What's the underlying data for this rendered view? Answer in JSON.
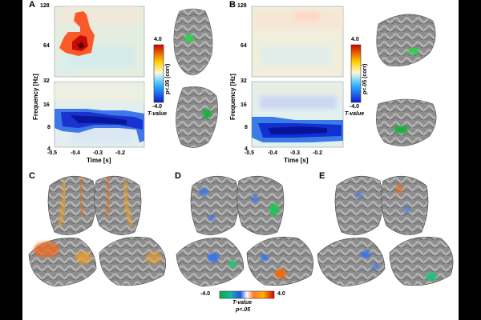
{
  "figure": {
    "panel_labels": [
      "A",
      "B",
      "C",
      "D",
      "E"
    ]
  },
  "panel_a": {
    "ylabel": "Frequency [Hz]",
    "xlabel": "Time [s]",
    "yticks_upper": [
      "128",
      "64"
    ],
    "yticks_lower": [
      "32",
      "16",
      "8",
      "4"
    ],
    "xticks": [
      "-0.5",
      "-0.4",
      "-0.3",
      "-0.2"
    ],
    "colorbar": {
      "max": "4.0",
      "min": "-4.0",
      "side_label": "p<.05 (corr)",
      "bottom_label": "T-value"
    }
  },
  "panel_b": {
    "ylabel": "Frequency [Hz]",
    "xlabel": "Time [s]",
    "yticks_upper": [
      "128",
      "64"
    ],
    "yticks_lower": [
      "32",
      "16",
      "8",
      "4"
    ],
    "xticks": [
      "-0.5",
      "-0.4",
      "-0.3",
      "-0.2"
    ],
    "colorbar": {
      "max": "4.0",
      "min": "-4.0",
      "side_label": "p<.05 (corr)",
      "bottom_label": "T-value"
    }
  },
  "bottom_colorbar": {
    "min": "-4.0",
    "max": "4.0",
    "label": "T-value",
    "sublabel": "p<.05"
  },
  "colors": {
    "positive": "#e8220f",
    "negative": "#0a2fd6",
    "significant_cluster": "#1fa52e",
    "brain_gray": "#8c8c8c",
    "map_background": "#e9f3e6"
  }
}
